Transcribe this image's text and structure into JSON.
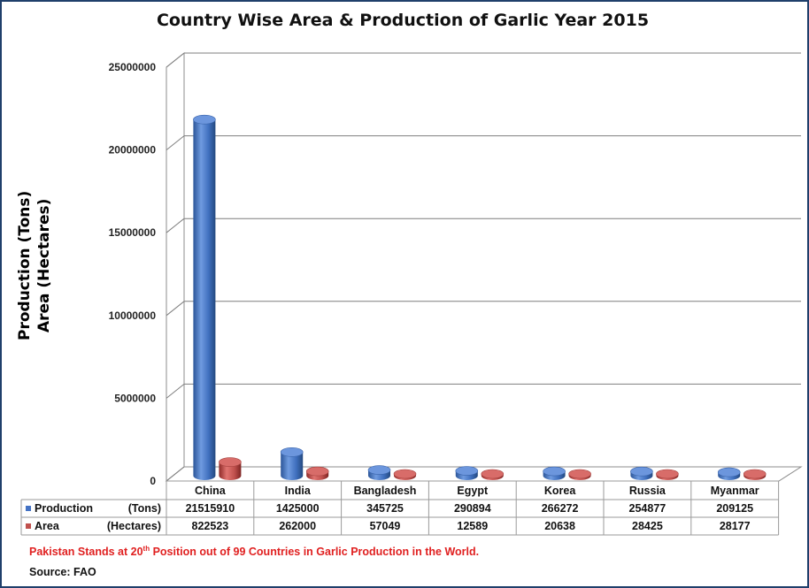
{
  "chart_data": {
    "type": "bar",
    "title": "Country Wise Area & Production of Garlic Year 2015",
    "ylabel_lines": [
      "Production (Tons)",
      "Area (Hectares)"
    ],
    "ylim": [
      0,
      25000000
    ],
    "yticks": [
      0,
      5000000,
      10000000,
      15000000,
      20000000,
      25000000
    ],
    "yticks_labels": [
      "0",
      "5000000",
      "10000000",
      "15000000",
      "20000000",
      "25000000"
    ],
    "categories": [
      "China",
      "India",
      "Bangladesh",
      "Egypt",
      "Korea",
      "Russia",
      "Myanmar"
    ],
    "series": [
      {
        "name": "Production   (Tons)",
        "color": "#4472c4",
        "values": [
          21515910,
          1425000,
          345725,
          290894,
          266272,
          254877,
          209125
        ]
      },
      {
        "name": "Area          (Hectares)",
        "color": "#c0504d",
        "values": [
          822523,
          262000,
          57049,
          12589,
          20638,
          28425,
          28177
        ]
      }
    ],
    "grid": true,
    "legend": "data-table"
  },
  "note": {
    "prefix": "Pakistan Stands at 20",
    "sup": "th",
    "suffix": " Position out of 99 Countries in Garlic Production in the World."
  },
  "source": "Source: FAO"
}
